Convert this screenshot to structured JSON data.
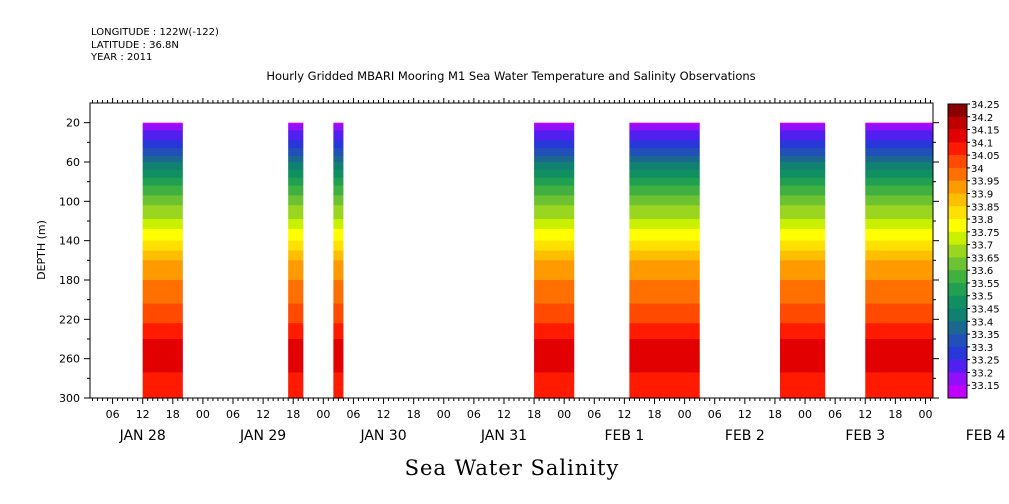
{
  "header": {
    "longitude": "LONGITUDE : 122W(-122)",
    "latitude": "LATITUDE : 36.8N",
    "year": "YEAR : 2011"
  },
  "chart_data": {
    "type": "heatmap",
    "title": "Hourly Gridded MBARI Mooring M1 Sea Water Temperature and Salinity Observations",
    "xlabel": "",
    "ylabel": "DEPTH (m)",
    "bottom_label": "Sea Water Salinity",
    "x_hour_ticks": [
      "06",
      "12",
      "18",
      "00",
      "06",
      "12",
      "18",
      "00",
      "06",
      "12",
      "18",
      "00",
      "06",
      "12",
      "18",
      "00",
      "06",
      "12",
      "18",
      "00",
      "06",
      "12",
      "18",
      "00",
      "06",
      "12",
      "18",
      "00",
      "06",
      "12",
      "18",
      "00"
    ],
    "x_day_labels": [
      "JAN 28",
      "JAN 29",
      "JAN 30",
      "JAN 31",
      "FEB  1",
      "FEB  2",
      "FEB  3",
      "FEB  4"
    ],
    "x_range_hours_from_jan28_00": [
      1.5,
      169.5
    ],
    "ylim": [
      0,
      300
    ],
    "y_ticks": [
      20,
      60,
      100,
      140,
      180,
      220,
      260,
      300
    ],
    "y_reversed": true,
    "colorbar": {
      "levels": [
        "34.25",
        "34.2",
        "34.15",
        "34.1",
        "34.05",
        "34",
        "33.95",
        "33.9",
        "33.85",
        "33.8",
        "33.75",
        "33.7",
        "33.65",
        "33.6",
        "33.55",
        "33.5",
        "33.45",
        "33.4",
        "33.35",
        "33.3",
        "33.25",
        "33.2",
        "33.15"
      ],
      "colors": [
        "#8b0000",
        "#c00000",
        "#e20000",
        "#ff1a00",
        "#ff4a00",
        "#ff7000",
        "#ff9a00",
        "#ffbf00",
        "#ffe000",
        "#ffff00",
        "#c8f000",
        "#9ad620",
        "#6cc230",
        "#40b040",
        "#20a050",
        "#109060",
        "#108070",
        "#1a6890",
        "#2050b8",
        "#2838d8",
        "#5020f0",
        "#9010f8",
        "#c000ff"
      ]
    },
    "segments": [
      {
        "start_hour": 12,
        "end_hour": 20
      },
      {
        "start_hour": 41,
        "end_hour": 44
      },
      {
        "start_hour": 50,
        "end_hour": 52
      },
      {
        "start_hour": 90,
        "end_hour": 98
      },
      {
        "start_hour": 109,
        "end_hour": 123
      },
      {
        "start_hour": 139,
        "end_hour": 148
      },
      {
        "start_hour": 156,
        "end_hour": 171
      }
    ],
    "profile_depths": [
      20,
      30,
      45,
      60,
      80,
      100,
      120,
      140,
      160,
      180,
      200,
      220,
      240,
      260,
      280,
      300
    ],
    "profile_salinity": [
      33.18,
      33.26,
      33.34,
      33.45,
      33.58,
      33.68,
      33.76,
      33.85,
      33.95,
      34.0,
      34.04,
      34.09,
      34.15,
      34.2,
      34.13,
      34.11
    ]
  }
}
